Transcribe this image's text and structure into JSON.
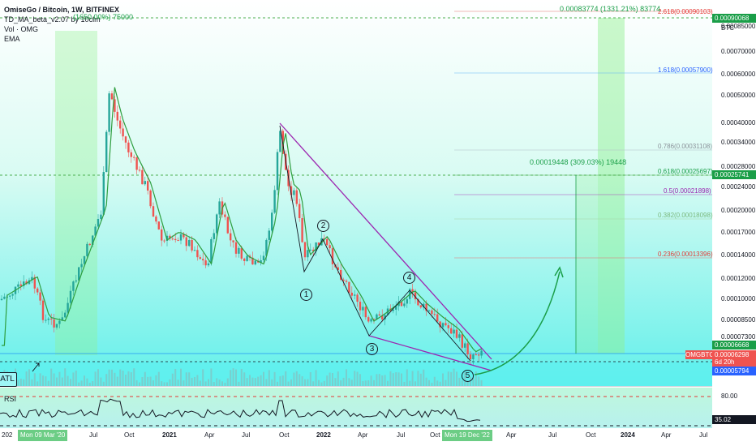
{
  "legend": {
    "title": "OmiseGo / Bitcoin, 1W, BITFINEX",
    "indicator_1": "TD_MA_beta_v2.07 by 10clm",
    "indicator_2": "Vol · OMG",
    "indicator_3": "EMA"
  },
  "atl_label": "ATL",
  "rsi_label": "RSI",
  "currency": "BTC",
  "price_axis": [
    "0.00085000",
    "0.00070000",
    "0.00060000",
    "0.00050000",
    "0.00040000",
    "0.00034000",
    "0.00028000",
    "0.00024000",
    "0.00020000",
    "0.00017000",
    "0.00014000",
    "0.00012000",
    "0.00010000",
    "0.00008500",
    "0.00007300"
  ],
  "price_tags": {
    "top": "0.00090068",
    "mid": "0.00025741",
    "current": "0.00006668",
    "symbol": "OMGBTC",
    "last": "0.00006298",
    "countdown": "6d 20h",
    "low": "0.00005794"
  },
  "rsi_axis": {
    "level_80": "80.00",
    "value": "35.02"
  },
  "fib_levels": [
    {
      "label": "2.618(0.00090103)"
    },
    {
      "label": "1.618(0.00057900)"
    },
    {
      "label": "0.786(0.00031108)"
    },
    {
      "label": "0.618(0.00025697)"
    },
    {
      "label": "0.5(0.00021898)"
    },
    {
      "label": "0.382(0.00018098)"
    },
    {
      "label": "0.236(0.00013396)"
    }
  ],
  "measurements": {
    "top": "0.00083774 (1331.21%) 83774",
    "mid": "0.00019448 (309.03%) 19448",
    "left": "(1650.00%) 75000"
  },
  "waves": [
    "1",
    "2",
    "3",
    "4",
    "5"
  ],
  "time_axis": [
    "Jul",
    "Oct",
    "2021",
    "Apr",
    "Jul",
    "Oct",
    "2022",
    "Apr",
    "Jul",
    "Oct",
    "Apr",
    "Jul",
    "Oct",
    "2024",
    "Apr",
    "Jul"
  ],
  "time_tags": {
    "start": "Mon 09 Mar '20",
    "end": "Mon 19 Dec '22"
  },
  "time_axis_year_left": "202"
}
